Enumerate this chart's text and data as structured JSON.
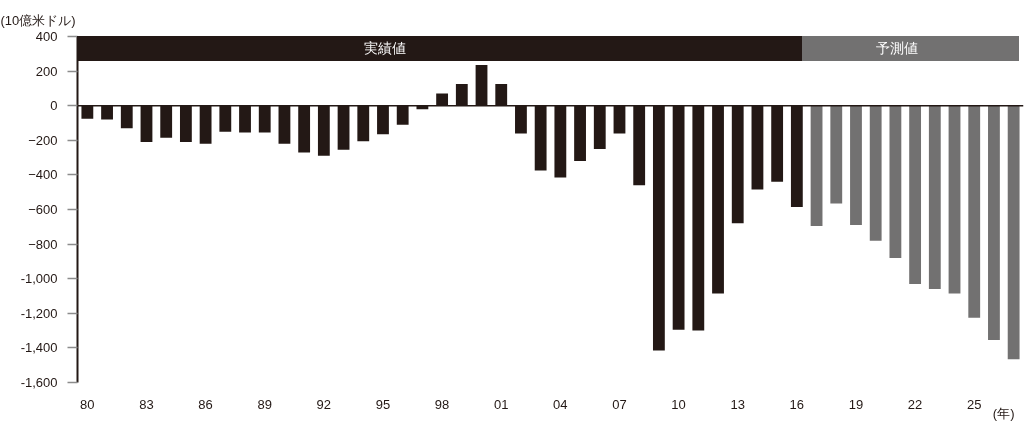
{
  "chart_data": {
    "type": "bar",
    "ylabel": "(10億米ドル)",
    "xlabel": "(年)",
    "legend": "top",
    "xlim": [
      1979.5,
      2027.5
    ],
    "xticks": [
      {
        "value": 1980,
        "label": "80"
      },
      {
        "value": 1983,
        "label": "83"
      },
      {
        "value": 1986,
        "label": "86"
      },
      {
        "value": 1989,
        "label": "89"
      },
      {
        "value": 1992,
        "label": "92"
      },
      {
        "value": 1995,
        "label": "95"
      },
      {
        "value": 1998,
        "label": "98"
      },
      {
        "value": 2001,
        "label": "01"
      },
      {
        "value": 2004,
        "label": "04"
      },
      {
        "value": 2007,
        "label": "07"
      },
      {
        "value": 2010,
        "label": "10"
      },
      {
        "value": 2013,
        "label": "13"
      },
      {
        "value": 2016,
        "label": "16"
      },
      {
        "value": 2019,
        "label": "19"
      },
      {
        "value": 2022,
        "label": "22"
      },
      {
        "value": 2025,
        "label": "25"
      }
    ],
    "ylim": [
      -1600,
      400
    ],
    "yticks": [
      400,
      200,
      0,
      -200,
      -400,
      -600,
      -800,
      {
        "value": -1000,
        "label": "-1,000"
      },
      {
        "value": -1200,
        "label": "-1,200"
      },
      {
        "value": -1400,
        "label": "-1,400"
      },
      {
        "value": -1600,
        "label": "-1,600"
      }
    ],
    "series": [
      {
        "name": "実績値",
        "color": "#231815",
        "x": [
          1980,
          1981,
          1982,
          1983,
          1984,
          1985,
          1986,
          1987,
          1988,
          1989,
          1990,
          1991,
          1992,
          1993,
          1994,
          1995,
          1996,
          1997,
          1998,
          1999,
          2000,
          2001,
          2002,
          2003,
          2004,
          2005,
          2006,
          2007,
          2008,
          2009,
          2010,
          2011,
          2012,
          2013,
          2014,
          2015,
          2016
        ],
        "values": [
          -75,
          -80,
          -130,
          -210,
          -185,
          -210,
          -220,
          -150,
          -155,
          -155,
          -220,
          -270,
          -290,
          -255,
          -205,
          -165,
          -110,
          -20,
          70,
          125,
          235,
          125,
          -160,
          -375,
          -415,
          -320,
          -250,
          -160,
          -460,
          -1415,
          -1295,
          -1300,
          -1085,
          -680,
          -485,
          -440,
          -585
        ]
      },
      {
        "name": "予測値",
        "color": "#727171",
        "x": [
          2017,
          2018,
          2019,
          2020,
          2021,
          2022,
          2023,
          2024,
          2025,
          2026,
          2027
        ],
        "values": [
          -695,
          -565,
          -690,
          -780,
          -880,
          -1030,
          -1060,
          -1085,
          -1225,
          -1355,
          -1465
        ]
      }
    ],
    "ref_lines": [
      {
        "axis": "y",
        "value": 0,
        "color": "#231815"
      }
    ]
  }
}
